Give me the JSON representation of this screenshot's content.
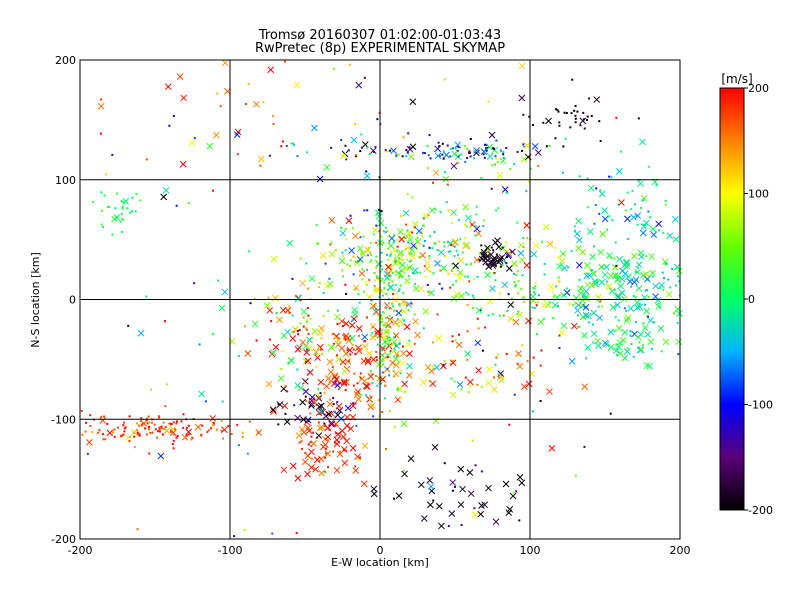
{
  "chart_data": {
    "type": "scatter",
    "title": "Tromsø 20160307 01:02:00-01:03:43",
    "subtitle": "RwPretec (8p) EXPERIMENTAL SKYMAP",
    "xlabel": "E-W location [km]",
    "ylabel": "N-S location [km]",
    "xlim": [
      -200,
      200
    ],
    "ylim": [
      -200,
      200
    ],
    "xticks": [
      "-200",
      "-100",
      "0",
      "100",
      "200"
    ],
    "yticks": [
      "-200",
      "-100",
      "0",
      "100",
      "200"
    ],
    "grid": true,
    "colorbar": {
      "label": "[m/s]",
      "range": [
        -200,
        200
      ],
      "ticks": [
        "-200",
        "-100",
        "0",
        "100",
        "200"
      ]
    },
    "marker_types": [
      "dot",
      "x"
    ],
    "clusters": [
      {
        "x": -150,
        "y": -108,
        "sx": 30,
        "sy": 6,
        "v": 180,
        "vs": 30,
        "n": 150,
        "xf": 0.1
      },
      {
        "x": -35,
        "y": -120,
        "sx": 12,
        "sy": 15,
        "v": 185,
        "vs": 25,
        "n": 90,
        "xf": 0.6
      },
      {
        "x": -45,
        "y": -90,
        "sx": 15,
        "sy": 10,
        "v": -180,
        "vs": 40,
        "n": 40,
        "xf": 0.6
      },
      {
        "x": -15,
        "y": -50,
        "sx": 15,
        "sy": 20,
        "v": 175,
        "vs": 30,
        "n": 110,
        "xf": 0.6
      },
      {
        "x": -50,
        "y": -35,
        "sx": 15,
        "sy": 25,
        "v": 120,
        "vs": 80,
        "n": 90,
        "xf": 0.4
      },
      {
        "x": 5,
        "y": -20,
        "sx": 8,
        "sy": 35,
        "v": 40,
        "vs": 70,
        "n": 160,
        "xf": 0.2
      },
      {
        "x": 0,
        "y": 30,
        "sx": 25,
        "sy": 20,
        "v": 60,
        "vs": 60,
        "n": 180,
        "xf": 0.2
      },
      {
        "x": 50,
        "y": 40,
        "sx": 30,
        "sy": 25,
        "v": 50,
        "vs": 70,
        "n": 160,
        "xf": 0.3
      },
      {
        "x": 78,
        "y": 33,
        "sx": 6,
        "sy": 6,
        "v": -190,
        "vs": 15,
        "n": 40,
        "xf": 0.7
      },
      {
        "x": 165,
        "y": 10,
        "sx": 30,
        "sy": 20,
        "v": -10,
        "vs": 40,
        "n": 170,
        "xf": 0.6
      },
      {
        "x": 110,
        "y": 0,
        "sx": 25,
        "sy": 15,
        "v": 40,
        "vs": 50,
        "n": 80,
        "xf": 0.3
      },
      {
        "x": 170,
        "y": 75,
        "sx": 25,
        "sy": 20,
        "v": -20,
        "vs": 45,
        "n": 70,
        "xf": 0.4
      },
      {
        "x": 165,
        "y": -35,
        "sx": 20,
        "sy": 12,
        "v": 0,
        "vs": 30,
        "n": 50,
        "xf": 0.6
      },
      {
        "x": 25,
        "y": 125,
        "sx": 45,
        "sy": 5,
        "v": -120,
        "vs": 90,
        "n": 90,
        "xf": 0.2
      },
      {
        "x": 70,
        "y": 120,
        "sx": 25,
        "sy": 8,
        "v": -10,
        "vs": 60,
        "n": 40,
        "xf": 0.3
      },
      {
        "x": 130,
        "y": 155,
        "sx": 20,
        "sy": 10,
        "v": -195,
        "vs": 10,
        "n": 35,
        "xf": 0.1
      },
      {
        "x": -172,
        "y": 75,
        "sx": 8,
        "sy": 10,
        "v": 10,
        "vs": 15,
        "n": 30,
        "xf": 0.1
      },
      {
        "x": 55,
        "y": -165,
        "sx": 25,
        "sy": 25,
        "v": -190,
        "vs": 30,
        "n": 45,
        "xf": 0.7
      },
      {
        "x": 70,
        "y": -50,
        "sx": 30,
        "sy": 20,
        "v": 150,
        "vs": 60,
        "n": 60,
        "xf": 0.4
      },
      {
        "x": -100,
        "y": 150,
        "sx": 40,
        "sy": 30,
        "v": 170,
        "vs": 40,
        "n": 30,
        "xf": 0.4
      },
      {
        "x": 0,
        "y": 0,
        "sx": 120,
        "sy": 110,
        "v": 0,
        "vs": 130,
        "n": 220,
        "xf": 0.3
      }
    ]
  }
}
